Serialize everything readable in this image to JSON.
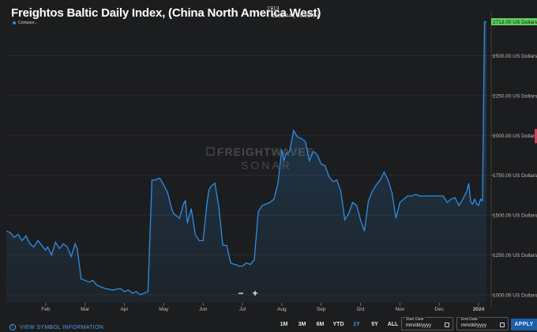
{
  "header": {
    "title": "Freightos Baltic Daily Index, (China North America West)",
    "last_value": "2713",
    "change": "1085.44 ( 66.69% )"
  },
  "legend": {
    "label": "Compare..."
  },
  "watermark": {
    "line1": "FREIGHTWAVES",
    "line2": "SONAR"
  },
  "zoom": {
    "minus": "−",
    "plus": "+"
  },
  "footer": {
    "view_symbol_info": "VIEW SYMBOL INFORMATION",
    "ranges": [
      "1M",
      "3M",
      "6M",
      "YTD",
      "1Y",
      "5Y",
      "ALL"
    ],
    "active_range": "1Y",
    "start_date": {
      "label": "Start Date",
      "value": "mm/dd/yyyy"
    },
    "end_date": {
      "label": "End Date",
      "value": "mm/dd/yyyy"
    },
    "apply": "APPLY"
  },
  "colors": {
    "line": "#2f8de4",
    "background": "#1c1d1f",
    "last_tag": "#5fd15f",
    "apply": "#1f5fa8"
  },
  "chart_data": {
    "type": "area",
    "title": "Freightos Baltic Daily Index, (China North America West)",
    "ylabel": "US Dollars",
    "ylim": [
      950,
      2780
    ],
    "yticks": [
      1000,
      1250,
      1500,
      1750,
      2000,
      2250,
      2500
    ],
    "ytick_labels": [
      "1000.00 US Dollars",
      "1250.00 US Dollars",
      "1500.00 US Dollars",
      "1750.00 US Dollars",
      "2000.00 US Dollars",
      "2250.00 US Dollars",
      "2500.00 US Dollars"
    ],
    "xlim": [
      0,
      12.3
    ],
    "xticks": [
      1,
      2,
      3,
      4,
      5,
      6,
      7,
      8,
      9,
      10,
      11,
      12
    ],
    "xtick_labels": [
      "Feb",
      "Mar",
      "Apr",
      "May",
      "Jun",
      "Jul",
      "Aug",
      "Sep",
      "Oct",
      "Nov",
      "Dec",
      "2024"
    ],
    "last_value_label": "2713.00 US Dollars",
    "grid": true,
    "series": [
      {
        "x": [
          0,
          0.1,
          0.2,
          0.3,
          0.4,
          0.5,
          0.6,
          0.7,
          0.8,
          0.9,
          1.0,
          1.05,
          1.15,
          1.25,
          1.35,
          1.45,
          1.55,
          1.65,
          1.75,
          1.8,
          1.85,
          1.9,
          2.0,
          2.1,
          2.2,
          2.3,
          2.5,
          2.7,
          2.9,
          3.0,
          3.1,
          3.2,
          3.3,
          3.35,
          3.4,
          3.5,
          3.6,
          3.7,
          3.8,
          3.85,
          3.9,
          4.0,
          4.1,
          4.2,
          4.25,
          4.3,
          4.4,
          4.5,
          4.55,
          4.6,
          4.7,
          4.8,
          4.9,
          5.0,
          5.1,
          5.15,
          5.2,
          5.3,
          5.4,
          5.5,
          5.6,
          5.7,
          5.8,
          5.85,
          5.9,
          6.0,
          6.1,
          6.2,
          6.3,
          6.4,
          6.5,
          6.6,
          6.7,
          6.8,
          6.9,
          7.0,
          7.05,
          7.1,
          7.2,
          7.3,
          7.4,
          7.5,
          7.6,
          7.7,
          7.8,
          7.9,
          8.0,
          8.1,
          8.2,
          8.3,
          8.4,
          8.5,
          8.6,
          8.7,
          8.8,
          8.9,
          9.0,
          9.1,
          9.2,
          9.3,
          9.4,
          9.5,
          9.6,
          9.7,
          9.8,
          9.9,
          10.0,
          10.1,
          10.2,
          10.3,
          10.4,
          10.5,
          10.6,
          10.7,
          10.8,
          10.9,
          11.0,
          11.1,
          11.2,
          11.3,
          11.4,
          11.5,
          11.6,
          11.7,
          11.75,
          11.8,
          11.85,
          11.9,
          11.95,
          12.0,
          12.05,
          12.1,
          12.15,
          12.2
        ],
        "y": [
          1400,
          1390,
          1360,
          1380,
          1340,
          1370,
          1320,
          1300,
          1340,
          1310,
          1280,
          1300,
          1250,
          1330,
          1290,
          1320,
          1300,
          1240,
          1320,
          1290,
          1200,
          1100,
          1090,
          1080,
          1090,
          1060,
          1040,
          1030,
          1040,
          1020,
          1030,
          1010,
          1020,
          1010,
          1000,
          1010,
          1020,
          1720,
          1720,
          1730,
          1730,
          1690,
          1640,
          1540,
          1510,
          1500,
          1480,
          1570,
          1590,
          1450,
          1540,
          1380,
          1340,
          1340,
          1580,
          1660,
          1680,
          1700,
          1550,
          1310,
          1310,
          1200,
          1190,
          1190,
          1180,
          1180,
          1200,
          1190,
          1220,
          1520,
          1560,
          1570,
          1580,
          1600,
          1700,
          1910,
          1840,
          1880,
          1900,
          2030,
          1990,
          1980,
          1960,
          1840,
          1900,
          1880,
          1820,
          1810,
          1740,
          1710,
          1720,
          1650,
          1470,
          1510,
          1580,
          1560,
          1470,
          1400,
          1590,
          1650,
          1690,
          1720,
          1770,
          1720,
          1640,
          1480,
          1580,
          1600,
          1620,
          1620,
          1630,
          1620,
          1620,
          1620,
          1620,
          1620,
          1620,
          1620,
          1580,
          1600,
          1610,
          1560,
          1600,
          1650,
          1700,
          1580,
          1570,
          1600,
          1570,
          1560,
          1600,
          1590,
          2713,
          2713
        ]
      }
    ]
  }
}
